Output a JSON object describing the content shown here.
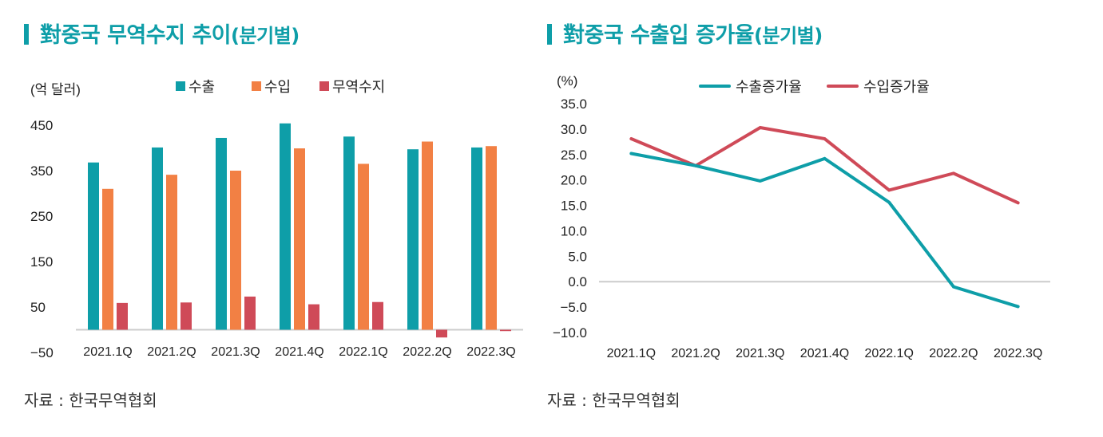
{
  "chart_data": [
    {
      "type": "bar",
      "title": "對중국 무역수지 추이",
      "title_suffix": "(분기별)",
      "unit_label": "(억 달러)",
      "xlabel": "",
      "ylabel": "",
      "categories": [
        "2021.1Q",
        "2021.2Q",
        "2021.3Q",
        "2021.4Q",
        "2022.1Q",
        "2022.2Q",
        "2022.3Q"
      ],
      "series": [
        {
          "name": "수출",
          "color": "#0e9ea8",
          "values": [
            368,
            401,
            422,
            454,
            425,
            397,
            401
          ]
        },
        {
          "name": "수입",
          "color": "#f28044",
          "values": [
            310,
            341,
            350,
            399,
            365,
            414,
            404
          ]
        },
        {
          "name": "무역수지",
          "color": "#cf4a58",
          "values": [
            59,
            60,
            73,
            56,
            61,
            -17,
            -3
          ]
        }
      ],
      "yticks": [
        450,
        350,
        250,
        150,
        50,
        -50
      ],
      "ytick_labels": [
        "450",
        "350",
        "250",
        "150",
        "50",
        "−50"
      ],
      "ylim": [
        -50,
        450
      ],
      "legend_position": "top",
      "grid": false,
      "source": "자료 : 한국무역협회"
    },
    {
      "type": "line",
      "title": "對중국 수출입 증가율",
      "title_suffix": "(분기별)",
      "unit_label": "(%)",
      "xlabel": "",
      "ylabel": "",
      "categories": [
        "2021.1Q",
        "2021.2Q",
        "2021.3Q",
        "2021.4Q",
        "2022.1Q",
        "2022.2Q",
        "2022.3Q"
      ],
      "series": [
        {
          "name": "수출증가율",
          "color": "#0e9ea8",
          "values": [
            25.2,
            22.8,
            19.8,
            24.2,
            15.6,
            -1.0,
            -4.9
          ]
        },
        {
          "name": "수입증가율",
          "color": "#cf4a58",
          "values": [
            28.1,
            22.8,
            30.3,
            28.1,
            18.0,
            21.3,
            15.5
          ]
        }
      ],
      "yticks": [
        35,
        30,
        25,
        20,
        15,
        10,
        5,
        0,
        -5,
        -10
      ],
      "ytick_labels": [
        "35.0",
        "30.0",
        "25.0",
        "20.0",
        "15.0",
        "10.0",
        "5.0",
        "0.0",
        "−5.0",
        "−10.0"
      ],
      "ylim": [
        -10,
        35
      ],
      "legend_position": "top",
      "grid": false,
      "source": "자료 : 한국무역협회"
    }
  ]
}
